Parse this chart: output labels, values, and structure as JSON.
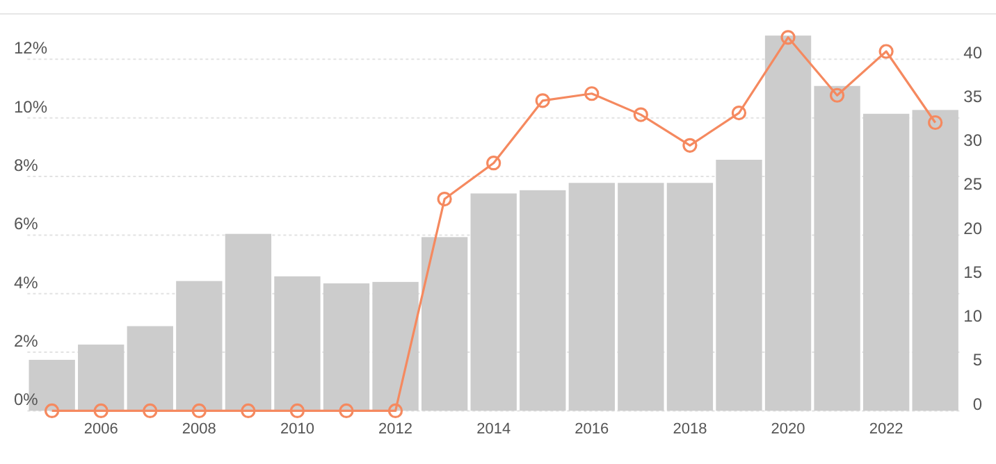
{
  "chart_data": {
    "type": "bar",
    "categories": [
      null,
      "2006",
      null,
      "2008",
      null,
      "2010",
      null,
      "2012",
      null,
      "2014",
      null,
      "2016",
      null,
      "2018",
      null,
      "2020",
      null,
      "2022",
      null
    ],
    "series": [
      {
        "color": "#cccccc",
        "values": [
          1.74,
          2.26,
          2.89,
          4.43,
          6.04,
          4.59,
          4.35,
          4.4,
          5.93,
          7.42,
          7.53,
          7.78,
          7.78,
          7.78,
          8.57,
          12.81,
          11.09,
          10.14,
          10.27
        ]
      },
      {
        "type": "line",
        "axis": "y2",
        "color": "#f5895f",
        "marker": "circle",
        "values": [
          0,
          0,
          0,
          0,
          0,
          0,
          0,
          0,
          24.1,
          28.2,
          35.3,
          36.1,
          33.7,
          30.2,
          33.9,
          42.5,
          35.9,
          40.9,
          32.8
        ]
      }
    ],
    "ylim": [
      0,
      13.55
    ],
    "yticks": [
      {
        "value": 0,
        "label": "0%"
      },
      {
        "value": 2,
        "label": "2%"
      },
      {
        "value": 4,
        "label": "4%"
      },
      {
        "value": 6,
        "label": "6%"
      },
      {
        "value": 8,
        "label": "8%"
      },
      {
        "value": 10,
        "label": "10%"
      },
      {
        "value": 12,
        "label": "12%"
      }
    ],
    "y2lim": [
      0,
      45.17
    ],
    "y2ticks": [
      0,
      5,
      10,
      15,
      20,
      25,
      30,
      35,
      40
    ],
    "grid": "y"
  }
}
